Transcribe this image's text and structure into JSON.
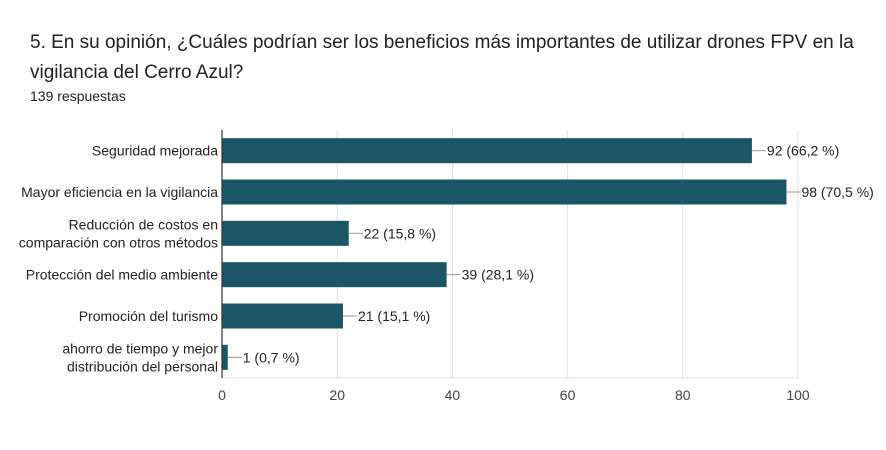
{
  "question": {
    "title": "5. En su opinión, ¿Cuáles podrían ser los beneficios más importantes de utilizar drones FPV en la vigilancia del Cerro Azul?",
    "responses": "139 respuestas"
  },
  "colors": {
    "bar": "#1d5568",
    "grid": "#e0e0e0",
    "axis": "#333333",
    "text": "#222222"
  },
  "chart_data": {
    "type": "bar",
    "orientation": "horizontal",
    "categories": [
      [
        "Seguridad mejorada"
      ],
      [
        "Mayor eficiencia en la vigilancia"
      ],
      [
        "Reducción de costos en",
        "comparación con otros métodos"
      ],
      [
        "Protección del medio ambiente"
      ],
      [
        "Promoción del turismo"
      ],
      [
        "ahorro de tiempo y mejor",
        "distribución del personal"
      ]
    ],
    "values": [
      92,
      98,
      22,
      39,
      21,
      1
    ],
    "data_labels": [
      "92 (66,2 %)",
      "98 (70,5 %)",
      "22 (15,8 %)",
      "39 (28,1 %)",
      "21 (15,1 %)",
      "1 (0,7 %)"
    ],
    "xlim": [
      0,
      100
    ],
    "xticks": [
      0,
      20,
      40,
      60,
      80,
      100
    ],
    "grid": true
  }
}
